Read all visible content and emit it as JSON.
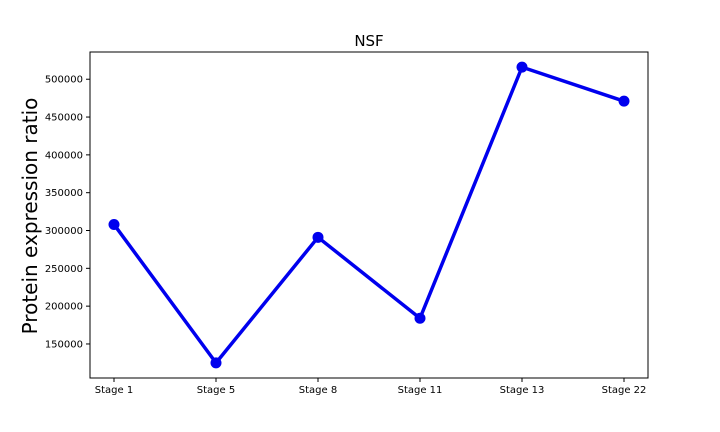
{
  "chart_data": {
    "type": "line",
    "title": "NSF",
    "xlabel": "",
    "ylabel": "Protein expression ratio",
    "categories": [
      "Stage 1",
      "Stage 5",
      "Stage 8",
      "Stage 11",
      "Stage 13",
      "Stage 22"
    ],
    "series": [
      {
        "values": [
          308000,
          125000,
          291000,
          184000,
          516000,
          471000
        ]
      }
    ],
    "yticks": [
      150000,
      200000,
      250000,
      300000,
      350000,
      400000,
      450000,
      500000
    ],
    "ylim": [
      105000,
      536000
    ],
    "grid": false,
    "colors": {
      "line": "#0000ee"
    }
  }
}
